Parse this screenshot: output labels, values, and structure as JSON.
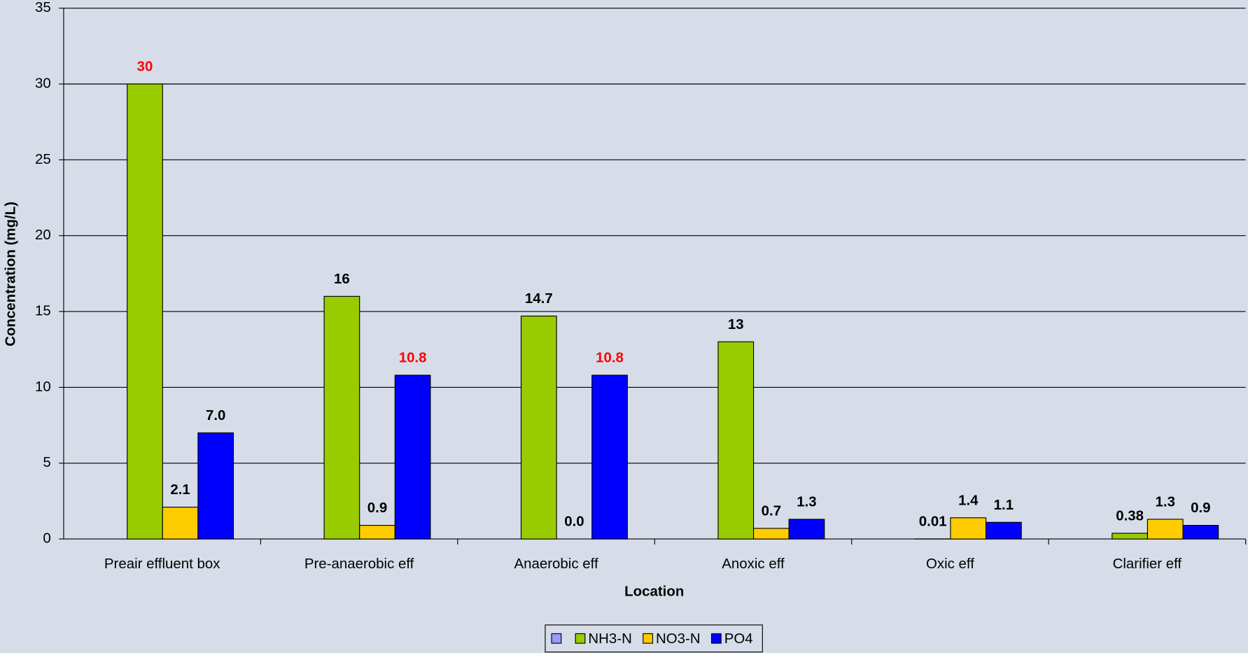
{
  "chart_data": {
    "type": "bar",
    "x_label": "Location",
    "y_label": "Concentration (mg/L)",
    "categories": [
      "Preair effluent box",
      "Pre-anaerobic eff",
      "Anaerobic eff",
      "Anoxic eff",
      "Oxic eff",
      "Clarifier eff"
    ],
    "series": [
      {
        "name": null,
        "color": "#9999ff",
        "values": [
          null,
          null,
          null,
          null,
          null,
          null
        ]
      },
      {
        "name": "NH3-N",
        "color": "#99cc00",
        "values": [
          30,
          16,
          14.7,
          13,
          0.01,
          0.38
        ],
        "value_label_colors": [
          "#ff0000",
          "#000000",
          "#000000",
          "#000000",
          "#000000",
          "#000000"
        ]
      },
      {
        "name": "NO3-N",
        "color": "#ffcc00",
        "values": [
          2.1,
          0.9,
          0,
          0.7,
          1.4,
          1.3
        ],
        "value_labels": [
          "2.1",
          "0.9",
          "0.0",
          "0.7",
          "1.4",
          "1.3"
        ],
        "value_label_colors": [
          "#000000",
          "#000000",
          "#000000",
          "#000000",
          "#000000",
          "#000000"
        ]
      },
      {
        "name": "PO4",
        "color": "#0000ff",
        "values": [
          7,
          10.8,
          10.8,
          1.3,
          1.1,
          0.9
        ],
        "value_labels": [
          "7.0",
          "10.8",
          "10.8",
          "1.3",
          "1.1",
          "0.9"
        ],
        "value_label_colors": [
          "#000000",
          "#ff0000",
          "#ff0000",
          "#000000",
          "#000000",
          "#000000"
        ]
      }
    ],
    "ylim": [
      0,
      35
    ],
    "yticks": [
      0,
      5,
      10,
      15,
      20,
      25,
      30,
      35
    ],
    "grid": true,
    "legend": "bottom"
  }
}
